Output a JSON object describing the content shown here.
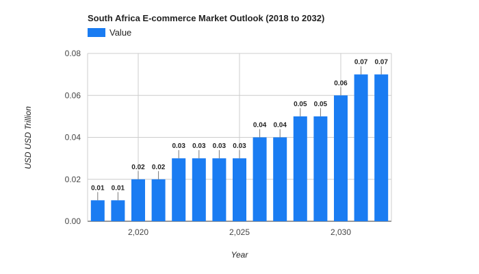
{
  "chart_data": {
    "type": "bar",
    "title": "South Africa E-commerce Market Outlook (2018 to 2032)",
    "xlabel": "Year",
    "ylabel": "USD USD Trillion",
    "legend": {
      "position": "top-left",
      "entries": [
        "Value"
      ]
    },
    "grid": true,
    "ylim": [
      0,
      0.08
    ],
    "y_ticks": [
      "0.00",
      "0.02",
      "0.04",
      "0.06",
      "0.08"
    ],
    "x_ticks": [
      {
        "value": 2020,
        "label": "2,020"
      },
      {
        "value": 2025,
        "label": "2,025"
      },
      {
        "value": 2030,
        "label": "2,030"
      }
    ],
    "categories": [
      2018,
      2019,
      2020,
      2021,
      2022,
      2023,
      2024,
      2025,
      2026,
      2027,
      2028,
      2029,
      2030,
      2031,
      2032
    ],
    "series": [
      {
        "name": "Value",
        "color": "#1a7cf2",
        "values": [
          0.01,
          0.01,
          0.02,
          0.02,
          0.03,
          0.03,
          0.03,
          0.03,
          0.04,
          0.04,
          0.05,
          0.05,
          0.06,
          0.07,
          0.07
        ],
        "labels": [
          "0.01",
          "0.01",
          "0.02",
          "0.02",
          "0.03",
          "0.03",
          "0.03",
          "0.03",
          "0.04",
          "0.04",
          "0.05",
          "0.05",
          "0.06",
          "0.07",
          "0.07"
        ]
      }
    ]
  }
}
